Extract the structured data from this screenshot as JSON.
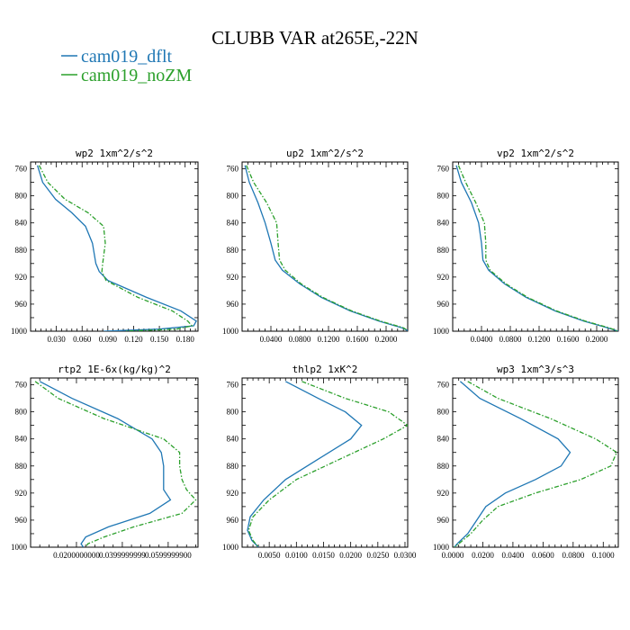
{
  "figure": {
    "title": "CLUBB VAR at265E,-22N",
    "legend": [
      {
        "name": "cam019_dflt",
        "color": "#1f77b4",
        "dash": "solid"
      },
      {
        "name": "cam019_noZM",
        "color": "#2ca02c",
        "dash": "dashdot"
      }
    ]
  },
  "chart_data": [
    {
      "type": "line",
      "title": "wp2  1xm^2/s^2",
      "xlim": [
        0.0,
        0.195
      ],
      "ylim": [
        1000,
        750
      ],
      "xticks": [
        0.03,
        0.06,
        0.09,
        0.12,
        0.15,
        0.18
      ],
      "xtick_labels": [
        "0.030",
        "0.060",
        "0.090",
        "0.120",
        "0.150",
        "0.180"
      ],
      "yticks": [
        760,
        800,
        840,
        880,
        920,
        960,
        1000
      ],
      "y": [
        755,
        780,
        805,
        825,
        845,
        870,
        900,
        912,
        925,
        950,
        970,
        985,
        992,
        997,
        1000
      ],
      "series": [
        {
          "name": "cam019_dflt",
          "values": [
            0.008,
            0.014,
            0.029,
            0.048,
            0.064,
            0.072,
            0.076,
            0.08,
            0.09,
            0.135,
            0.175,
            0.193,
            0.19,
            0.15,
            0.085
          ]
        },
        {
          "name": "cam019_noZM",
          "values": [
            0.01,
            0.02,
            0.04,
            0.067,
            0.085,
            0.087,
            0.084,
            0.083,
            0.088,
            0.125,
            0.165,
            0.183,
            0.188,
            0.17,
            0.11
          ]
        }
      ]
    },
    {
      "type": "line",
      "title": "up2  1xm^2/s^2",
      "xlim": [
        0.0,
        0.23
      ],
      "ylim": [
        1000,
        750
      ],
      "xticks": [
        0.04,
        0.08,
        0.12,
        0.16,
        0.2
      ],
      "xtick_labels": [
        "0.0400",
        "0.0800",
        "0.1200",
        "0.1600",
        "0.2000"
      ],
      "yticks": [
        760,
        800,
        840,
        880,
        920,
        960,
        1000
      ],
      "y": [
        755,
        780,
        810,
        840,
        870,
        895,
        910,
        930,
        950,
        970,
        985,
        995,
        1000
      ],
      "series": [
        {
          "name": "cam019_dflt",
          "values": [
            0.004,
            0.01,
            0.022,
            0.032,
            0.04,
            0.046,
            0.056,
            0.08,
            0.11,
            0.15,
            0.19,
            0.222,
            0.232
          ]
        },
        {
          "name": "cam019_noZM",
          "values": [
            0.006,
            0.016,
            0.034,
            0.048,
            0.05,
            0.052,
            0.06,
            0.082,
            0.112,
            0.152,
            0.192,
            0.224,
            0.232
          ]
        }
      ]
    },
    {
      "type": "line",
      "title": "vp2  1xm^2/s^2",
      "xlim": [
        0.0,
        0.23
      ],
      "ylim": [
        1000,
        750
      ],
      "xticks": [
        0.04,
        0.08,
        0.12,
        0.16,
        0.2
      ],
      "xtick_labels": [
        "0.0400",
        "0.0800",
        "0.1200",
        "0.1600",
        "0.2000"
      ],
      "yticks": [
        760,
        800,
        840,
        880,
        920,
        960,
        1000
      ],
      "y": [
        755,
        780,
        810,
        840,
        870,
        895,
        910,
        930,
        950,
        970,
        985,
        995,
        1000
      ],
      "series": [
        {
          "name": "cam019_dflt",
          "values": [
            0.005,
            0.012,
            0.026,
            0.036,
            0.04,
            0.042,
            0.05,
            0.072,
            0.102,
            0.142,
            0.182,
            0.215,
            0.23
          ]
        },
        {
          "name": "cam019_noZM",
          "values": [
            0.008,
            0.018,
            0.032,
            0.044,
            0.046,
            0.046,
            0.052,
            0.074,
            0.104,
            0.144,
            0.184,
            0.217,
            0.23
          ]
        }
      ]
    },
    {
      "type": "line",
      "title": "rtp2  1E-6x(kg/kg)^2",
      "xlim": [
        0.0,
        0.073
      ],
      "ylim": [
        1000,
        750
      ],
      "xticks": [
        0.02,
        0.04,
        0.06
      ],
      "xtick_labels": [
        "0.0200000000",
        "0.0399999999",
        "0.0599999900"
      ],
      "yticks": [
        760,
        800,
        840,
        880,
        920,
        960,
        1000
      ],
      "y": [
        755,
        780,
        810,
        840,
        860,
        880,
        900,
        915,
        930,
        950,
        970,
        985,
        995,
        1000
      ],
      "series": [
        {
          "name": "cam019_dflt",
          "values": [
            0.004,
            0.018,
            0.038,
            0.053,
            0.057,
            0.058,
            0.058,
            0.058,
            0.061,
            0.052,
            0.034,
            0.024,
            0.022,
            0.023
          ]
        },
        {
          "name": "cam019_noZM",
          "values": [
            0.002,
            0.012,
            0.032,
            0.058,
            0.065,
            0.065,
            0.066,
            0.068,
            0.072,
            0.066,
            0.045,
            0.032,
            0.025,
            0.024
          ]
        }
      ]
    },
    {
      "type": "line",
      "title": "thlp2  1xK^2",
      "xlim": [
        0.0,
        0.0305
      ],
      "ylim": [
        1000,
        750
      ],
      "xticks": [
        0.005,
        0.01,
        0.015,
        0.02,
        0.025,
        0.03
      ],
      "xtick_labels": [
        "0.0050",
        "0.0100",
        "0.0150",
        "0.0200",
        "0.0250",
        "0.0300"
      ],
      "yticks": [
        760,
        800,
        840,
        880,
        920,
        960,
        1000
      ],
      "y": [
        755,
        780,
        800,
        820,
        840,
        870,
        900,
        930,
        955,
        975,
        990,
        1000
      ],
      "series": [
        {
          "name": "cam019_dflt",
          "values": [
            0.008,
            0.014,
            0.019,
            0.022,
            0.02,
            0.014,
            0.008,
            0.004,
            0.0015,
            0.001,
            0.0018,
            0.003
          ]
        },
        {
          "name": "cam019_noZM",
          "values": [
            0.011,
            0.019,
            0.027,
            0.0305,
            0.026,
            0.018,
            0.01,
            0.005,
            0.002,
            0.0012,
            0.002,
            0.003
          ]
        }
      ]
    },
    {
      "type": "line",
      "title": "wp3  1xm^3/s^3",
      "xlim": [
        0.0,
        0.11
      ],
      "ylim": [
        1000,
        750
      ],
      "xticks": [
        0.0,
        0.02,
        0.04,
        0.06,
        0.08,
        0.1
      ],
      "xtick_labels": [
        "0.0000",
        "0.0200",
        "0.0400",
        "0.0600",
        "0.0800",
        "0.1000"
      ],
      "yticks": [
        760,
        800,
        840,
        880,
        920,
        960,
        1000
      ],
      "y": [
        755,
        780,
        810,
        840,
        860,
        880,
        900,
        920,
        940,
        960,
        980,
        995,
        1000
      ],
      "series": [
        {
          "name": "cam019_dflt",
          "values": [
            0.005,
            0.018,
            0.045,
            0.07,
            0.078,
            0.072,
            0.055,
            0.035,
            0.022,
            0.016,
            0.01,
            0.003,
            0.001
          ]
        },
        {
          "name": "cam019_noZM",
          "values": [
            0.01,
            0.03,
            0.065,
            0.095,
            0.109,
            0.105,
            0.085,
            0.055,
            0.03,
            0.02,
            0.012,
            0.004,
            0.001
          ]
        }
      ]
    }
  ]
}
